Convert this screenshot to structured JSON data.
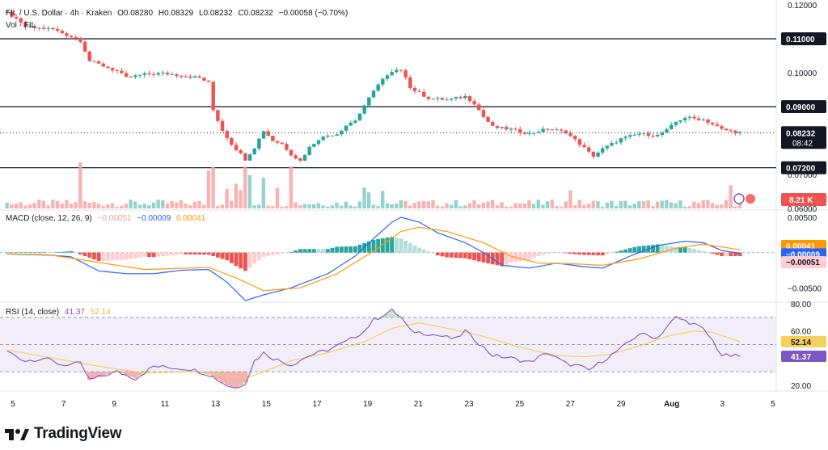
{
  "header": {
    "symbol": "FIL / U.S. Dollar · 4h · Kraken",
    "open": "O0.08280",
    "high": "H0.08329",
    "low": "L0.08232",
    "close": "C0.08232",
    "change": "−0.00058 (−0.70%)",
    "vol_label": "Vol · FIL",
    "vol_value": "8.21 K"
  },
  "macd_header": {
    "label": "MACD (close, 12, 26, 9)",
    "hist": "−0.00051",
    "macd": "−0.00009",
    "signal": "0.00041"
  },
  "rsi_header": {
    "label": "RSI (14, close)",
    "rsi": "41.37",
    "ma": "52.14"
  },
  "brand": {
    "name": "TradingView"
  },
  "colors": {
    "up": "#26a69a",
    "down": "#ef5350",
    "macd": "#2962ff",
    "signal": "#ff9800",
    "rsi": "#7e57c2",
    "rsi_ma": "#f7cf5a"
  },
  "chart_data": [
    {
      "type": "candlestick",
      "symbol": "FIL/USD",
      "interval": "4h",
      "x_tick_labels": [
        "5",
        "7",
        "9",
        "11",
        "13",
        "15",
        "17",
        "19",
        "21",
        "23",
        "25",
        "27",
        "29",
        "Aug",
        "3",
        "5"
      ],
      "y_tick_labels": [
        "0.12000",
        "0.11000",
        "0.10000",
        "0.09000",
        "0.08000",
        "0.07000",
        "0.06000"
      ],
      "ylim": [
        0.06,
        0.12
      ],
      "horizontal_levels": [
        {
          "value": 0.11,
          "label": "0.11000"
        },
        {
          "value": 0.09,
          "label": "0.09000"
        },
        {
          "value": 0.072,
          "label": "0.07200"
        }
      ],
      "last_price": {
        "value": 0.08232,
        "label": "0.08232",
        "countdown": "08:42"
      },
      "price_path": [
        [
          0,
          0.1178
        ],
        [
          4,
          0.1135
        ],
        [
          10,
          0.1128
        ],
        [
          16,
          0.1095
        ],
        [
          18,
          0.1035
        ],
        [
          24,
          0.1005
        ],
        [
          26,
          0.0985
        ],
        [
          30,
          0.0995
        ],
        [
          34,
          0.0998
        ],
        [
          38,
          0.0992
        ],
        [
          42,
          0.0985
        ],
        [
          44,
          0.097
        ],
        [
          45,
          0.089
        ],
        [
          47,
          0.083
        ],
        [
          49,
          0.079
        ],
        [
          51,
          0.076
        ],
        [
          52,
          0.0745
        ],
        [
          54,
          0.078
        ],
        [
          56,
          0.083
        ],
        [
          58,
          0.08
        ],
        [
          60,
          0.079
        ],
        [
          62,
          0.076
        ],
        [
          64,
          0.074
        ],
        [
          66,
          0.078
        ],
        [
          68,
          0.0805
        ],
        [
          70,
          0.0815
        ],
        [
          72,
          0.082
        ],
        [
          74,
          0.0845
        ],
        [
          76,
          0.086
        ],
        [
          78,
          0.09
        ],
        [
          80,
          0.095
        ],
        [
          82,
          0.098
        ],
        [
          84,
          0.1
        ],
        [
          86,
          0.101
        ],
        [
          87,
          0.099
        ],
        [
          88,
          0.0955
        ],
        [
          90,
          0.094
        ],
        [
          92,
          0.0925
        ],
        [
          96,
          0.092
        ],
        [
          100,
          0.093
        ],
        [
          102,
          0.091
        ],
        [
          104,
          0.087
        ],
        [
          106,
          0.084
        ],
        [
          110,
          0.0833
        ],
        [
          114,
          0.082
        ],
        [
          118,
          0.0835
        ],
        [
          122,
          0.0825
        ],
        [
          125,
          0.079
        ],
        [
          127,
          0.0765
        ],
        [
          128,
          0.0755
        ],
        [
          130,
          0.0775
        ],
        [
          134,
          0.0805
        ],
        [
          138,
          0.082
        ],
        [
          142,
          0.0815
        ],
        [
          144,
          0.083
        ],
        [
          146,
          0.0855
        ],
        [
          148,
          0.0868
        ],
        [
          152,
          0.0862
        ],
        [
          154,
          0.0848
        ],
        [
          156,
          0.0833
        ],
        [
          158,
          0.0828
        ],
        [
          160,
          0.0823
        ]
      ],
      "volume_spikes": [
        16,
        44,
        45,
        48,
        50,
        51,
        52,
        53,
        56,
        59,
        62,
        78,
        79,
        82,
        123,
        158
      ]
    },
    {
      "type": "macd",
      "params": "close, 12, 26, 9",
      "y_tick_labels": [
        "0.00500",
        "−0.00500"
      ],
      "ylim": [
        -0.0068,
        0.0058
      ],
      "values": {
        "histogram": -0.00051,
        "macd": -9e-05,
        "signal": 0.00041
      },
      "macd_path": [
        [
          0,
          -0.0002
        ],
        [
          8,
          -0.0003
        ],
        [
          14,
          -0.0006
        ],
        [
          20,
          -0.0026
        ],
        [
          26,
          -0.003
        ],
        [
          32,
          -0.003
        ],
        [
          38,
          -0.0025
        ],
        [
          44,
          -0.0024
        ],
        [
          48,
          -0.0042
        ],
        [
          52,
          -0.0068
        ],
        [
          56,
          -0.006
        ],
        [
          62,
          -0.005
        ],
        [
          70,
          -0.003
        ],
        [
          76,
          -0.0005
        ],
        [
          80,
          0.002
        ],
        [
          84,
          0.0043
        ],
        [
          86,
          0.005
        ],
        [
          90,
          0.0043
        ],
        [
          94,
          0.0028
        ],
        [
          100,
          0.0014
        ],
        [
          104,
          0.0
        ],
        [
          108,
          -0.0018
        ],
        [
          114,
          -0.0022
        ],
        [
          120,
          -0.0015
        ],
        [
          126,
          -0.002
        ],
        [
          130,
          -0.0022
        ],
        [
          136,
          -0.0005
        ],
        [
          142,
          0.001
        ],
        [
          148,
          0.0016
        ],
        [
          152,
          0.0014
        ],
        [
          156,
          0.0003
        ],
        [
          160,
          -0.0001
        ]
      ],
      "signal_path": [
        [
          0,
          -0.0002
        ],
        [
          10,
          -0.0004
        ],
        [
          20,
          -0.0014
        ],
        [
          30,
          -0.0024
        ],
        [
          40,
          -0.0022
        ],
        [
          44,
          -0.0021
        ],
        [
          50,
          -0.0036
        ],
        [
          56,
          -0.0054
        ],
        [
          64,
          -0.005
        ],
        [
          72,
          -0.003
        ],
        [
          80,
          0.0002
        ],
        [
          86,
          0.003
        ],
        [
          90,
          0.0036
        ],
        [
          96,
          0.003
        ],
        [
          104,
          0.0014
        ],
        [
          110,
          -0.0005
        ],
        [
          116,
          -0.0015
        ],
        [
          124,
          -0.0016
        ],
        [
          130,
          -0.0018
        ],
        [
          138,
          -0.0009
        ],
        [
          146,
          0.0006
        ],
        [
          152,
          0.0012
        ],
        [
          156,
          0.0008
        ],
        [
          160,
          0.0004
        ]
      ]
    },
    {
      "type": "rsi",
      "params": "14, close",
      "y_tick_labels": [
        "80.00",
        "60.00",
        "20.00"
      ],
      "ylim": [
        17,
        80
      ],
      "bands": {
        "upper": 70,
        "middle": 50,
        "lower": 30
      },
      "values": {
        "rsi": 41.37,
        "ma": 52.14
      },
      "rsi_path": [
        [
          0,
          45
        ],
        [
          4,
          38
        ],
        [
          8,
          40
        ],
        [
          12,
          35
        ],
        [
          16,
          36
        ],
        [
          18,
          24
        ],
        [
          20,
          26
        ],
        [
          24,
          30
        ],
        [
          28,
          25
        ],
        [
          32,
          34
        ],
        [
          36,
          33
        ],
        [
          40,
          32
        ],
        [
          44,
          28
        ],
        [
          48,
          20
        ],
        [
          50,
          18
        ],
        [
          52,
          22
        ],
        [
          54,
          38
        ],
        [
          56,
          44
        ],
        [
          58,
          40
        ],
        [
          62,
          35
        ],
        [
          66,
          42
        ],
        [
          70,
          46
        ],
        [
          74,
          52
        ],
        [
          78,
          60
        ],
        [
          80,
          68
        ],
        [
          84,
          75
        ],
        [
          86,
          70
        ],
        [
          88,
          60
        ],
        [
          92,
          58
        ],
        [
          98,
          54
        ],
        [
          100,
          60
        ],
        [
          104,
          48
        ],
        [
          106,
          42
        ],
        [
          110,
          40
        ],
        [
          114,
          37
        ],
        [
          118,
          44
        ],
        [
          122,
          36
        ],
        [
          125,
          34
        ],
        [
          127,
          31
        ],
        [
          130,
          38
        ],
        [
          134,
          47
        ],
        [
          138,
          58
        ],
        [
          142,
          55
        ],
        [
          144,
          63
        ],
        [
          146,
          70
        ],
        [
          150,
          65
        ],
        [
          152,
          61
        ],
        [
          154,
          53
        ],
        [
          156,
          42
        ],
        [
          160,
          41.4
        ]
      ],
      "ma_path": [
        [
          0,
          46
        ],
        [
          10,
          40
        ],
        [
          20,
          34
        ],
        [
          30,
          29
        ],
        [
          40,
          30
        ],
        [
          46,
          28
        ],
        [
          52,
          25
        ],
        [
          56,
          30
        ],
        [
          62,
          38
        ],
        [
          70,
          44
        ],
        [
          78,
          52
        ],
        [
          84,
          62
        ],
        [
          90,
          66
        ],
        [
          96,
          62
        ],
        [
          104,
          56
        ],
        [
          112,
          48
        ],
        [
          120,
          42
        ],
        [
          126,
          41
        ],
        [
          132,
          43
        ],
        [
          138,
          49
        ],
        [
          144,
          56
        ],
        [
          150,
          60
        ],
        [
          154,
          59
        ],
        [
          160,
          52.1
        ]
      ]
    }
  ]
}
